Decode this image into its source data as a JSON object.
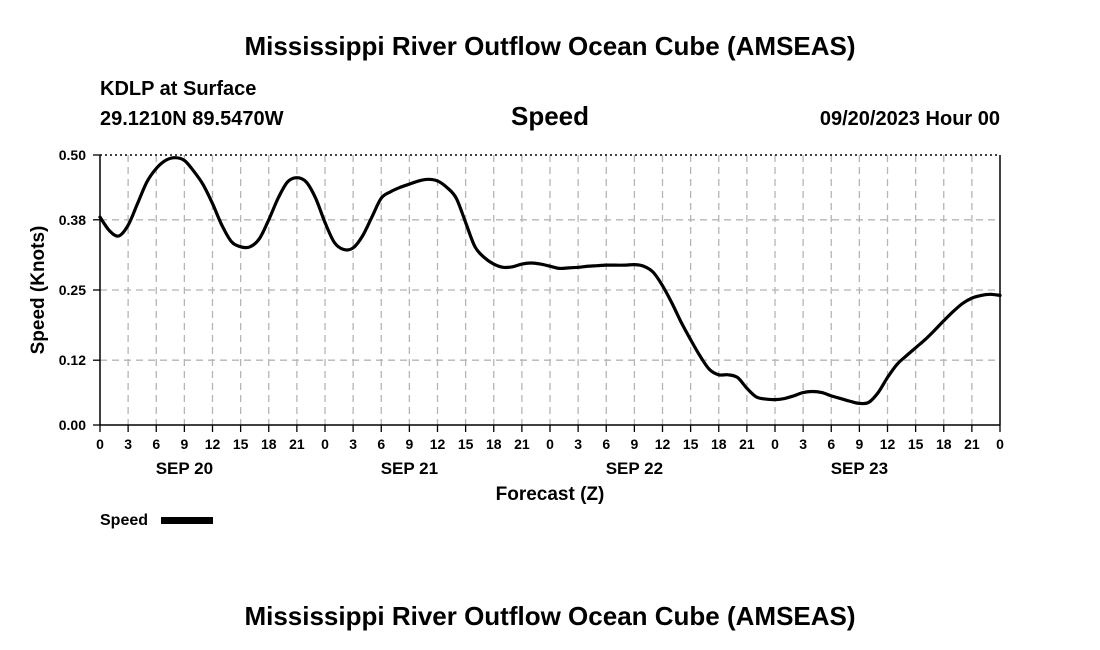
{
  "header": {
    "title": "Mississippi River Outflow Ocean Cube (AMSEAS)",
    "station": "KDLP at Surface",
    "coords": "29.1210N  89.5470W",
    "variable": "Speed",
    "run": "09/20/2023 Hour 00"
  },
  "footer": {
    "title": "Mississippi River Outflow Ocean Cube (AMSEAS)"
  },
  "chart_data": {
    "type": "line",
    "xlabel": "Forecast (Z)",
    "ylabel": "Speed (Knots)",
    "ylim": [
      0,
      0.5
    ],
    "yticks": [
      "0.00",
      "0.12",
      "0.25",
      "0.38",
      "0.50"
    ],
    "xlim_hours": [
      0,
      96
    ],
    "xtick_labels": [
      "0",
      "3",
      "6",
      "9",
      "12",
      "15",
      "18",
      "21",
      "0",
      "3",
      "6",
      "9",
      "12",
      "15",
      "18",
      "21",
      "0",
      "3",
      "6",
      "9",
      "12",
      "15",
      "18",
      "21",
      "0",
      "3",
      "6",
      "9",
      "12",
      "15",
      "18",
      "21",
      "0"
    ],
    "day_labels": [
      {
        "label": "SEP 20",
        "hour": 9
      },
      {
        "label": "SEP 21",
        "hour": 33
      },
      {
        "label": "SEP 22",
        "hour": 57
      },
      {
        "label": "SEP 23",
        "hour": 81
      }
    ],
    "grid": true,
    "legend": {
      "position": "bottom-left"
    },
    "series": [
      {
        "name": "Speed",
        "color": "#000000",
        "x": [
          0,
          1,
          2,
          3,
          4,
          5,
          6,
          7,
          8,
          9,
          10,
          11,
          12,
          13,
          14,
          15,
          16,
          17,
          18,
          19,
          20,
          21,
          22,
          23,
          24,
          25,
          26,
          27,
          28,
          29,
          30,
          31,
          32,
          33,
          34,
          35,
          36,
          37,
          38,
          39,
          40,
          41,
          42,
          43,
          44,
          45,
          46,
          47,
          48,
          49,
          50,
          51,
          52,
          53,
          54,
          55,
          56,
          57,
          58,
          59,
          60,
          61,
          62,
          63,
          64,
          65,
          66,
          67,
          68,
          69,
          70,
          71,
          72,
          73,
          74,
          75,
          76,
          77,
          78,
          79,
          80,
          81,
          82,
          83,
          84,
          85,
          86,
          87,
          88,
          89,
          90,
          91,
          92,
          93,
          94,
          95,
          96
        ],
        "values": [
          0.385,
          0.36,
          0.35,
          0.37,
          0.41,
          0.45,
          0.475,
          0.49,
          0.495,
          0.49,
          0.47,
          0.445,
          0.41,
          0.37,
          0.34,
          0.33,
          0.33,
          0.345,
          0.38,
          0.42,
          0.45,
          0.458,
          0.45,
          0.42,
          0.375,
          0.338,
          0.325,
          0.328,
          0.35,
          0.385,
          0.42,
          0.432,
          0.44,
          0.446,
          0.452,
          0.455,
          0.452,
          0.44,
          0.42,
          0.375,
          0.33,
          0.31,
          0.298,
          0.292,
          0.293,
          0.298,
          0.3,
          0.298,
          0.294,
          0.29,
          0.291,
          0.292,
          0.294,
          0.295,
          0.296,
          0.296,
          0.296,
          0.297,
          0.294,
          0.283,
          0.258,
          0.226,
          0.19,
          0.158,
          0.128,
          0.103,
          0.093,
          0.093,
          0.088,
          0.068,
          0.052,
          0.048,
          0.047,
          0.049,
          0.054,
          0.06,
          0.062,
          0.06,
          0.054,
          0.049,
          0.044,
          0.04,
          0.042,
          0.06,
          0.088,
          0.112,
          0.128,
          0.143,
          0.158,
          0.175,
          0.193,
          0.21,
          0.225,
          0.235,
          0.24,
          0.242,
          0.24
        ]
      }
    ]
  }
}
